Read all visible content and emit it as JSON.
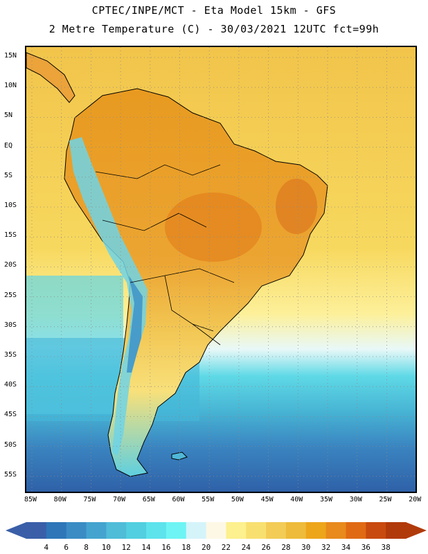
{
  "header": {
    "line1": "CPTEC/INPE/MCT -  Eta Model 15km - GFS",
    "line2": "2 Metre Temperature (C) - 30/03/2021 12UTC fct=99h"
  },
  "map": {
    "latitude_labels": [
      "15N",
      "10N",
      "5N",
      "EQ",
      "5S",
      "10S",
      "15S",
      "20S",
      "25S",
      "30S",
      "35S",
      "40S",
      "45S",
      "50S",
      "55S"
    ],
    "longitude_labels": [
      "85W",
      "80W",
      "75W",
      "70W",
      "65W",
      "60W",
      "55W",
      "50W",
      "45W",
      "40W",
      "35W",
      "30W",
      "25W",
      "20W"
    ]
  },
  "colorbar": {
    "labels": [
      "4",
      "6",
      "8",
      "10",
      "12",
      "14",
      "16",
      "18",
      "20",
      "22",
      "24",
      "26",
      "28",
      "30",
      "32",
      "34",
      "36",
      "38"
    ],
    "colors": [
      "#3a5fa8",
      "#2e76b8",
      "#3b8cc4",
      "#45a4cf",
      "#4fbcd8",
      "#52cfe0",
      "#5de3ec",
      "#6ef4f4",
      "#d4f4fa",
      "#fdf8e6",
      "#fdf08e",
      "#f8e070",
      "#f2cc55",
      "#eebb3a",
      "#eda51a",
      "#e88a1c",
      "#e06a14",
      "#c84a0e",
      "#b13a0a"
    ],
    "arrow_left_color": "#3a5fa8",
    "arrow_right_color": "#b13a0a"
  },
  "colors": {
    "frame": "#000000",
    "grid": "#9a9a9a",
    "coast": "#000000"
  }
}
